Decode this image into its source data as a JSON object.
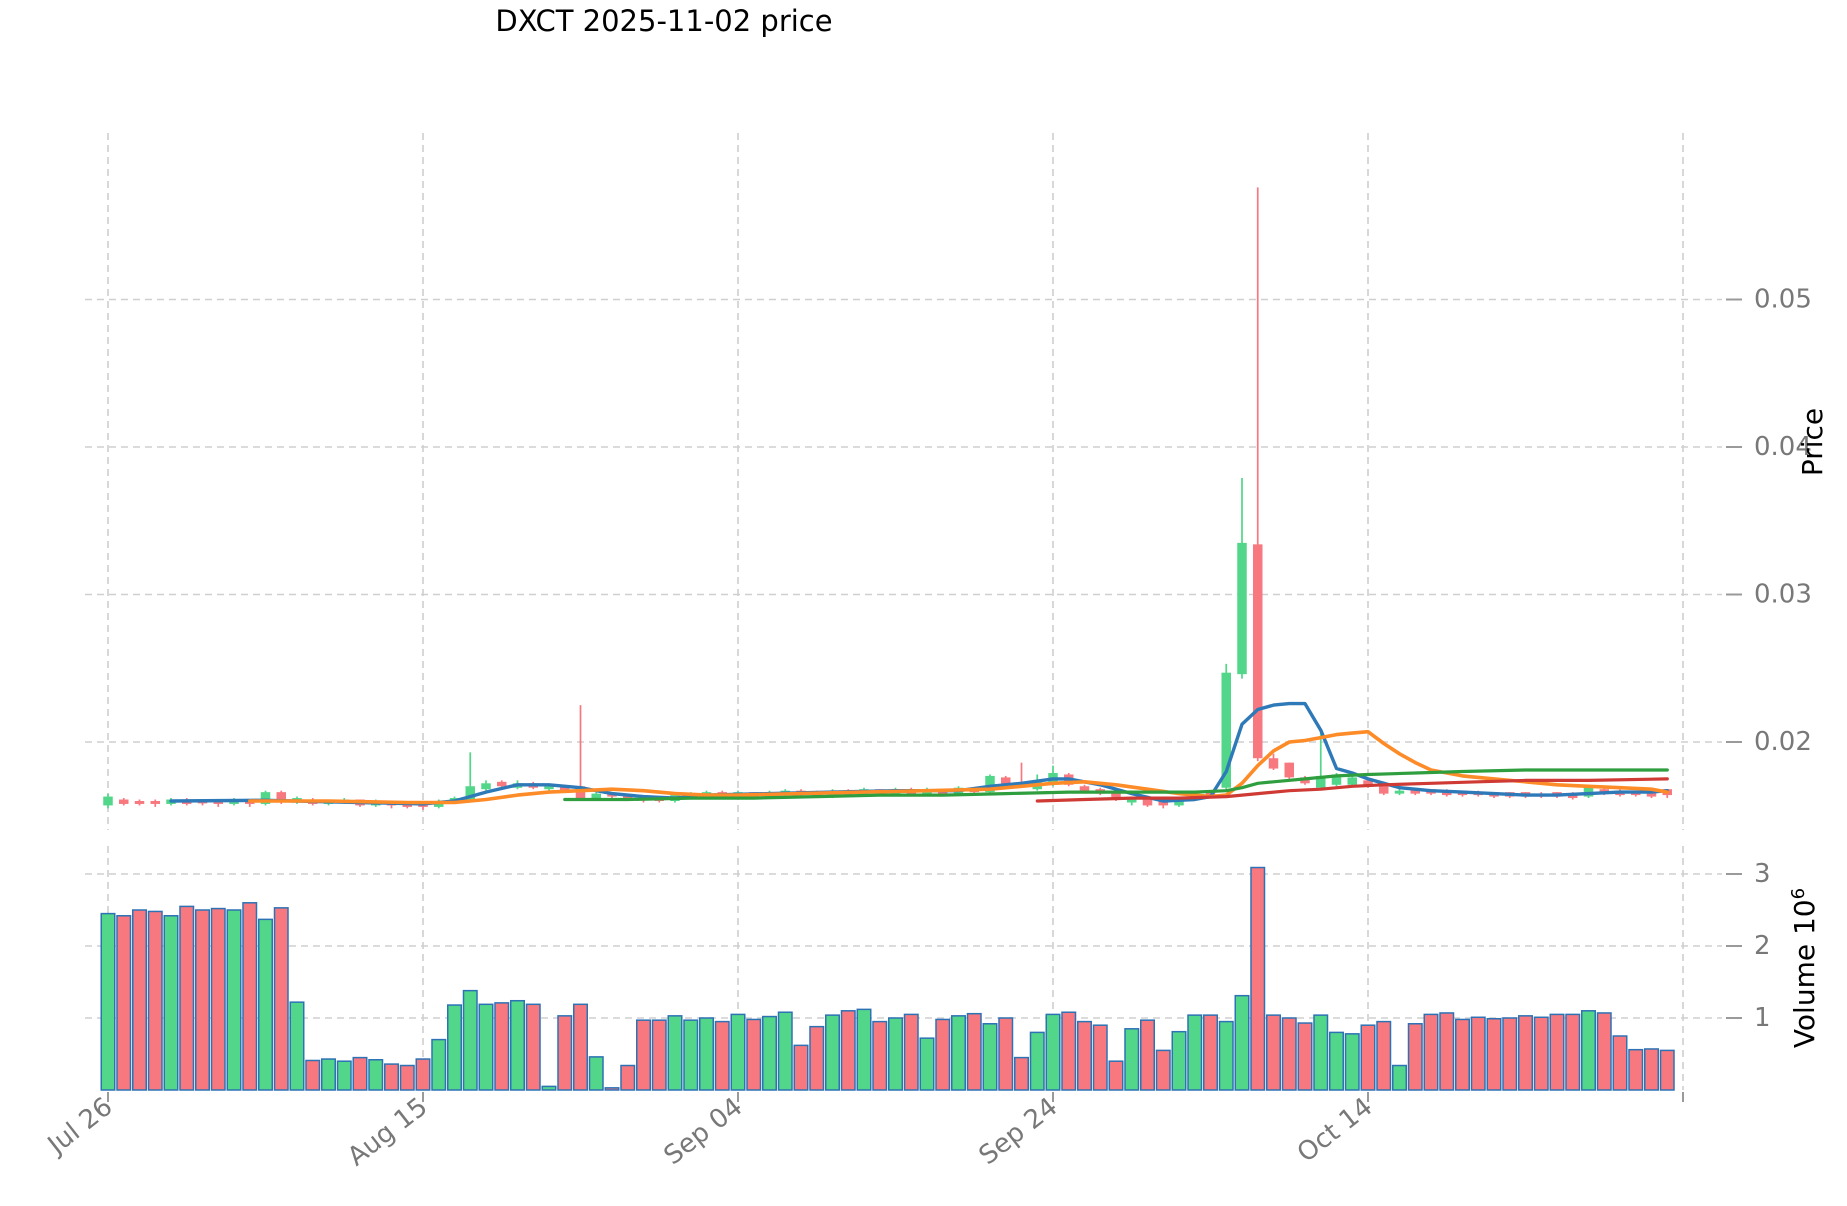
{
  "title": "DXCT  2025-11-02  price",
  "price_axis_label": "Price",
  "volume_axis_label_main": "Volume  10",
  "volume_axis_label_sup": "6",
  "colors": {
    "up": "#52d689",
    "down": "#f8787f",
    "volume_bar_edge": "#2d72b5",
    "ma5": "#2e79b8",
    "ma10": "#fd8b28",
    "ma30": "#2f9e3f",
    "ma60": "#cf3a34",
    "grid": "#cfcfcf",
    "tick_mark": "#9a9a9a",
    "tick_text": "#787878",
    "background": "#ffffff"
  },
  "x_axis": {
    "tick_labels": [
      "Jul 26",
      "Aug 15",
      "Sep 04",
      "Sep 24",
      "Oct 14",
      ""
    ],
    "tick_days": [
      0,
      20,
      40,
      60,
      80,
      100
    ]
  },
  "price_axis": {
    "tick_values": [
      0.02,
      0.03,
      0.04,
      0.05
    ],
    "tick_labels": [
      "0.02",
      "0.03",
      "0.04",
      "0.05"
    ]
  },
  "volume_axis": {
    "tick_values": [
      1,
      2,
      3
    ],
    "tick_labels": [
      "1",
      "2",
      "3"
    ]
  },
  "chart_data": {
    "type": "candlestick",
    "title": "DXCT  2025-11-02  price",
    "ylabel": "Price",
    "y2label": "Volume 10^6",
    "xlabel": "",
    "start_date": "2025-07-26",
    "frequency": "daily-calendar",
    "num_days": 100,
    "grid": "dashed",
    "price_ylim": [
      0.014,
      0.0615
    ],
    "volume_ylim_millions": [
      0,
      3.4
    ],
    "ohlc": [
      [
        0.0157,
        0.0165,
        0.0155,
        0.0163
      ],
      [
        0.0161,
        0.0162,
        0.0157,
        0.0158
      ],
      [
        0.016,
        0.0161,
        0.0157,
        0.0158
      ],
      [
        0.016,
        0.0161,
        0.0156,
        0.0158
      ],
      [
        0.0158,
        0.0162,
        0.0157,
        0.0161
      ],
      [
        0.0161,
        0.0162,
        0.0157,
        0.0158
      ],
      [
        0.016,
        0.0161,
        0.0157,
        0.0159
      ],
      [
        0.016,
        0.0161,
        0.0156,
        0.0158
      ],
      [
        0.0158,
        0.0162,
        0.0157,
        0.0161
      ],
      [
        0.0161,
        0.0161,
        0.0156,
        0.0158
      ],
      [
        0.0158,
        0.0167,
        0.0157,
        0.0166
      ],
      [
        0.0166,
        0.0167,
        0.0158,
        0.016
      ],
      [
        0.0159,
        0.0163,
        0.0158,
        0.0162
      ],
      [
        0.0161,
        0.0162,
        0.0157,
        0.0158
      ],
      [
        0.0158,
        0.0161,
        0.0157,
        0.016
      ],
      [
        0.0159,
        0.0162,
        0.0158,
        0.0161
      ],
      [
        0.0161,
        0.0161,
        0.0156,
        0.0157
      ],
      [
        0.0157,
        0.0161,
        0.0156,
        0.016
      ],
      [
        0.016,
        0.016,
        0.0155,
        0.0157
      ],
      [
        0.0159,
        0.016,
        0.0155,
        0.0156
      ],
      [
        0.0158,
        0.0159,
        0.0154,
        0.0156
      ],
      [
        0.0156,
        0.0161,
        0.0155,
        0.016
      ],
      [
        0.0159,
        0.0163,
        0.0158,
        0.0162
      ],
      [
        0.016,
        0.0193,
        0.0159,
        0.017
      ],
      [
        0.0168,
        0.0174,
        0.0166,
        0.0172
      ],
      [
        0.0173,
        0.0174,
        0.0169,
        0.017
      ],
      [
        0.0169,
        0.0174,
        0.0168,
        0.0172
      ],
      [
        0.0172,
        0.0173,
        0.0168,
        0.0169
      ],
      [
        0.0168,
        0.0171,
        0.0167,
        0.017
      ],
      [
        0.017,
        0.0171,
        0.0166,
        0.0167
      ],
      [
        0.017,
        0.0225,
        0.016,
        0.0162
      ],
      [
        0.0161,
        0.0166,
        0.016,
        0.0165
      ],
      [
        0.0165,
        0.0165,
        0.0162,
        0.0163
      ],
      [
        0.0164,
        0.0164,
        0.016,
        0.0161
      ],
      [
        0.0163,
        0.0164,
        0.0159,
        0.0161
      ],
      [
        0.0162,
        0.0163,
        0.0159,
        0.016
      ],
      [
        0.016,
        0.0165,
        0.0159,
        0.0164
      ],
      [
        0.0162,
        0.0166,
        0.0161,
        0.0165
      ],
      [
        0.0163,
        0.0167,
        0.0162,
        0.0166
      ],
      [
        0.0166,
        0.0167,
        0.0162,
        0.0163
      ],
      [
        0.0163,
        0.0167,
        0.0162,
        0.0166
      ],
      [
        0.0166,
        0.0166,
        0.0162,
        0.0163
      ],
      [
        0.0163,
        0.0167,
        0.0162,
        0.0166
      ],
      [
        0.0164,
        0.0168,
        0.0163,
        0.0167
      ],
      [
        0.0167,
        0.0168,
        0.0163,
        0.0164
      ],
      [
        0.0166,
        0.0167,
        0.0162,
        0.0163
      ],
      [
        0.0163,
        0.0168,
        0.0162,
        0.0167
      ],
      [
        0.0167,
        0.0168,
        0.0163,
        0.0164
      ],
      [
        0.0164,
        0.0169,
        0.0163,
        0.0168
      ],
      [
        0.0168,
        0.0168,
        0.0164,
        0.0165
      ],
      [
        0.0165,
        0.0169,
        0.0164,
        0.0168
      ],
      [
        0.0168,
        0.0169,
        0.0164,
        0.0165
      ],
      [
        0.0165,
        0.0169,
        0.0164,
        0.0168
      ],
      [
        0.0168,
        0.0168,
        0.0164,
        0.0165
      ],
      [
        0.0165,
        0.017,
        0.0164,
        0.0169
      ],
      [
        0.0169,
        0.0169,
        0.0165,
        0.0166
      ],
      [
        0.0166,
        0.0178,
        0.0165,
        0.0177
      ],
      [
        0.0176,
        0.0177,
        0.0169,
        0.017
      ],
      [
        0.0172,
        0.0186,
        0.0169,
        0.017
      ],
      [
        0.0168,
        0.0178,
        0.0167,
        0.0174
      ],
      [
        0.0171,
        0.0184,
        0.017,
        0.0179
      ],
      [
        0.0178,
        0.0179,
        0.017,
        0.0171
      ],
      [
        0.017,
        0.0171,
        0.0166,
        0.0167
      ],
      [
        0.0168,
        0.0169,
        0.0164,
        0.0165
      ],
      [
        0.0167,
        0.0167,
        0.016,
        0.0161
      ],
      [
        0.0159,
        0.0162,
        0.0157,
        0.0161
      ],
      [
        0.0161,
        0.0161,
        0.0156,
        0.0157
      ],
      [
        0.016,
        0.016,
        0.0155,
        0.0157
      ],
      [
        0.0157,
        0.0162,
        0.0156,
        0.0161
      ],
      [
        0.0161,
        0.0165,
        0.016,
        0.0164
      ],
      [
        0.0166,
        0.0167,
        0.0162,
        0.0163
      ],
      [
        0.0169,
        0.0253,
        0.0166,
        0.0247
      ],
      [
        0.0246,
        0.0379,
        0.0243,
        0.0335
      ],
      [
        0.0334,
        0.0576,
        0.0187,
        0.0189
      ],
      [
        0.0189,
        0.0192,
        0.0181,
        0.0182
      ],
      [
        0.0186,
        0.0186,
        0.0175,
        0.0176
      ],
      [
        0.0176,
        0.0177,
        0.0171,
        0.0172
      ],
      [
        0.0169,
        0.0208,
        0.0168,
        0.0177
      ],
      [
        0.0171,
        0.0179,
        0.017,
        0.0178
      ],
      [
        0.0171,
        0.0177,
        0.017,
        0.0176
      ],
      [
        0.0174,
        0.0175,
        0.0169,
        0.017
      ],
      [
        0.0172,
        0.0173,
        0.0164,
        0.0165
      ],
      [
        0.0165,
        0.0169,
        0.0164,
        0.0167
      ],
      [
        0.0168,
        0.0169,
        0.0164,
        0.0165
      ],
      [
        0.0168,
        0.0168,
        0.0164,
        0.0165
      ],
      [
        0.0167,
        0.0168,
        0.0163,
        0.0164
      ],
      [
        0.0167,
        0.0167,
        0.0163,
        0.0164
      ],
      [
        0.0166,
        0.0167,
        0.0163,
        0.0164
      ],
      [
        0.0166,
        0.0166,
        0.0162,
        0.0163
      ],
      [
        0.0166,
        0.0166,
        0.0162,
        0.0163
      ],
      [
        0.0166,
        0.0166,
        0.0162,
        0.0163
      ],
      [
        0.0165,
        0.0166,
        0.0162,
        0.0163
      ],
      [
        0.0166,
        0.0166,
        0.0162,
        0.0163
      ],
      [
        0.0165,
        0.0166,
        0.0161,
        0.0162
      ],
      [
        0.0163,
        0.0171,
        0.0162,
        0.017
      ],
      [
        0.0168,
        0.0169,
        0.0164,
        0.0165
      ],
      [
        0.0167,
        0.0168,
        0.0163,
        0.0164
      ],
      [
        0.0166,
        0.0167,
        0.0163,
        0.0164
      ],
      [
        0.0166,
        0.0166,
        0.0162,
        0.0163
      ],
      [
        0.0168,
        0.0168,
        0.0162,
        0.0164
      ]
    ],
    "volume_millions": [
      2.45,
      2.42,
      2.5,
      2.48,
      2.42,
      2.55,
      2.5,
      2.52,
      2.5,
      2.6,
      2.37,
      2.53,
      1.22,
      0.41,
      0.43,
      0.4,
      0.45,
      0.42,
      0.36,
      0.34,
      0.43,
      0.7,
      1.18,
      1.38,
      1.19,
      1.21,
      1.24,
      1.19,
      0.05,
      1.03,
      1.19,
      0.46,
      0.03,
      0.34,
      0.97,
      0.97,
      1.03,
      0.97,
      1.0,
      0.95,
      1.05,
      0.98,
      1.02,
      1.08,
      0.62,
      0.88,
      1.04,
      1.1,
      1.12,
      0.95,
      1.0,
      1.05,
      0.72,
      0.98,
      1.03,
      1.06,
      0.92,
      1.0,
      0.45,
      0.8,
      1.05,
      1.08,
      0.95,
      0.9,
      0.4,
      0.85,
      0.97,
      0.55,
      0.81,
      1.04,
      1.04,
      0.95,
      1.31,
      3.09,
      1.04,
      1.0,
      0.93,
      1.04,
      0.8,
      0.78,
      0.9,
      0.95,
      0.34,
      0.92,
      1.05,
      1.07,
      0.98,
      1.01,
      0.99,
      1.0,
      1.03,
      1.01,
      1.05,
      1.05,
      1.1,
      1.07,
      0.75,
      0.56,
      0.57,
      0.55
    ],
    "moving_averages": {
      "ma5": [
        [
          4,
          0.016
        ],
        [
          10,
          0.01605
        ],
        [
          16,
          0.0159
        ],
        [
          20,
          0.0158
        ],
        [
          22,
          0.016
        ],
        [
          24,
          0.0166
        ],
        [
          26,
          0.0171
        ],
        [
          28,
          0.0171
        ],
        [
          30,
          0.0169
        ],
        [
          32,
          0.0165
        ],
        [
          34,
          0.0163
        ],
        [
          36,
          0.0162
        ],
        [
          38,
          0.0164
        ],
        [
          42,
          0.0165
        ],
        [
          46,
          0.0166
        ],
        [
          50,
          0.0167
        ],
        [
          54,
          0.0167
        ],
        [
          56,
          0.017
        ],
        [
          58,
          0.0172
        ],
        [
          60,
          0.0175
        ],
        [
          61,
          0.0175
        ],
        [
          63,
          0.0171
        ],
        [
          65,
          0.0165
        ],
        [
          67,
          0.016
        ],
        [
          69,
          0.0161
        ],
        [
          70,
          0.0163
        ],
        [
          71,
          0.018
        ],
        [
          72,
          0.0212
        ],
        [
          73,
          0.0222
        ],
        [
          74,
          0.0225
        ],
        [
          75,
          0.0226
        ],
        [
          76,
          0.0226
        ],
        [
          77,
          0.0208
        ],
        [
          78,
          0.0182
        ],
        [
          79,
          0.0179
        ],
        [
          80,
          0.0175
        ],
        [
          81,
          0.0172
        ],
        [
          82,
          0.0169
        ],
        [
          84,
          0.0167
        ],
        [
          86,
          0.0166
        ],
        [
          88,
          0.0165
        ],
        [
          90,
          0.0164
        ],
        [
          92,
          0.0164
        ],
        [
          94,
          0.0165
        ],
        [
          96,
          0.0166
        ],
        [
          98,
          0.0166
        ],
        [
          99,
          0.0167
        ]
      ],
      "ma10": [
        [
          9,
          0.016
        ],
        [
          14,
          0.016
        ],
        [
          19,
          0.0159
        ],
        [
          22,
          0.0159
        ],
        [
          24,
          0.0161
        ],
        [
          26,
          0.0164
        ],
        [
          28,
          0.0166
        ],
        [
          30,
          0.0167
        ],
        [
          32,
          0.0168
        ],
        [
          34,
          0.0167
        ],
        [
          36,
          0.0165
        ],
        [
          38,
          0.0164
        ],
        [
          40,
          0.0164
        ],
        [
          44,
          0.0165
        ],
        [
          48,
          0.0166
        ],
        [
          52,
          0.0167
        ],
        [
          56,
          0.0168
        ],
        [
          58,
          0.017
        ],
        [
          60,
          0.0172
        ],
        [
          62,
          0.0173
        ],
        [
          64,
          0.0171
        ],
        [
          66,
          0.0168
        ],
        [
          68,
          0.0165
        ],
        [
          70,
          0.0163
        ],
        [
          71,
          0.0164
        ],
        [
          72,
          0.0172
        ],
        [
          73,
          0.0184
        ],
        [
          74,
          0.0194
        ],
        [
          75,
          0.02
        ],
        [
          76,
          0.0201
        ],
        [
          77,
          0.0203
        ],
        [
          78,
          0.0205
        ],
        [
          79,
          0.0206
        ],
        [
          80,
          0.0207
        ],
        [
          81,
          0.0199
        ],
        [
          82,
          0.0192
        ],
        [
          83,
          0.0186
        ],
        [
          84,
          0.0181
        ],
        [
          86,
          0.0177
        ],
        [
          88,
          0.0175
        ],
        [
          90,
          0.0173
        ],
        [
          92,
          0.0171
        ],
        [
          94,
          0.017
        ],
        [
          96,
          0.0169
        ],
        [
          98,
          0.0168
        ],
        [
          99,
          0.0166
        ]
      ],
      "ma30": [
        [
          29,
          0.0161
        ],
        [
          33,
          0.0161
        ],
        [
          37,
          0.0162
        ],
        [
          41,
          0.0162
        ],
        [
          45,
          0.0163
        ],
        [
          49,
          0.0164
        ],
        [
          53,
          0.0164
        ],
        [
          57,
          0.0165
        ],
        [
          61,
          0.0166
        ],
        [
          65,
          0.0166
        ],
        [
          69,
          0.0166
        ],
        [
          71,
          0.0167
        ],
        [
          72,
          0.0169
        ],
        [
          73,
          0.0172
        ],
        [
          74,
          0.0173
        ],
        [
          76,
          0.0175
        ],
        [
          78,
          0.0177
        ],
        [
          80,
          0.0178
        ],
        [
          83,
          0.0179
        ],
        [
          86,
          0.018
        ],
        [
          90,
          0.0181
        ],
        [
          95,
          0.0181
        ],
        [
          99,
          0.0181
        ]
      ],
      "ma60": [
        [
          59,
          0.016
        ],
        [
          62,
          0.0161
        ],
        [
          65,
          0.0162
        ],
        [
          68,
          0.0162
        ],
        [
          71,
          0.0163
        ],
        [
          73,
          0.0165
        ],
        [
          75,
          0.0167
        ],
        [
          77,
          0.0168
        ],
        [
          79,
          0.017
        ],
        [
          81,
          0.0171
        ],
        [
          84,
          0.0172
        ],
        [
          87,
          0.0173
        ],
        [
          90,
          0.0174
        ],
        [
          94,
          0.0174
        ],
        [
          99,
          0.0175
        ]
      ]
    }
  }
}
